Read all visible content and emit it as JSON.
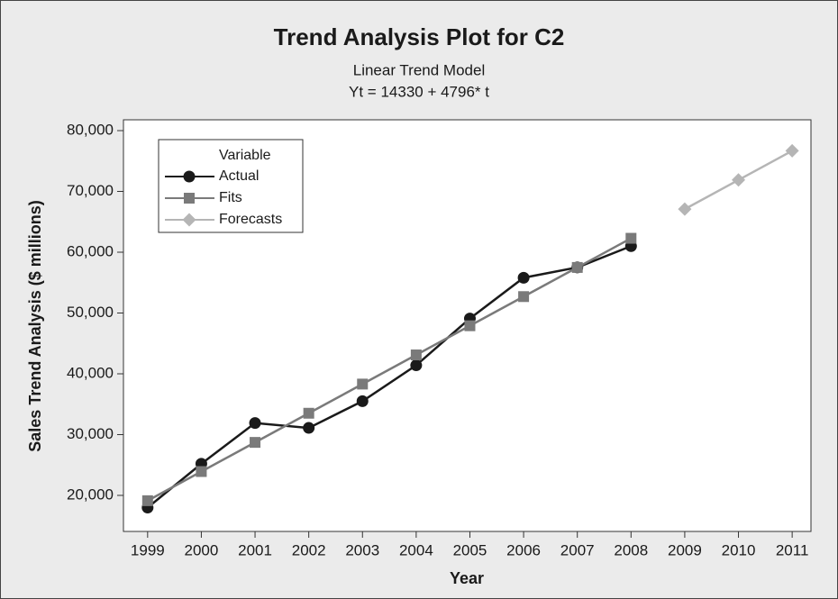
{
  "chart_data": {
    "type": "line",
    "title": "Trend Analysis Plot for C2",
    "subtitle": [
      "Linear Trend Model",
      "Yt = 14330 + 4796* t"
    ],
    "x_label": "Year",
    "y_label": "Sales Trend Analysis ($ millions)",
    "x": [
      1999,
      2000,
      2001,
      2002,
      2003,
      2004,
      2005,
      2006,
      2007,
      2008,
      2009,
      2010,
      2011
    ],
    "xlim": [
      1998.55,
      2011.35
    ],
    "xticks": [
      1999,
      2000,
      2001,
      2002,
      2003,
      2004,
      2005,
      2006,
      2007,
      2008,
      2009,
      2010,
      2011
    ],
    "ylim": [
      14070,
      81780
    ],
    "yticks": [
      {
        "value": 20000,
        "label": "20,000"
      },
      {
        "value": 30000,
        "label": "30,000"
      },
      {
        "value": 40000,
        "label": "40,000"
      },
      {
        "value": 50000,
        "label": "50,000"
      },
      {
        "value": 60000,
        "label": "60,000"
      },
      {
        "value": 70000,
        "label": "70,000"
      },
      {
        "value": 80000,
        "label": "80,000"
      }
    ],
    "legend_title": "Variable",
    "legend": "top-left",
    "series": [
      {
        "name": "Actual",
        "color": "#1a1a1a",
        "marker": "circle",
        "values": [
          18000,
          25200,
          31900,
          31100,
          35500,
          41400,
          49100,
          55800,
          57500,
          61000,
          null,
          null,
          null
        ]
      },
      {
        "name": "Fits",
        "color": "#7a7a7a",
        "marker": "square",
        "values": [
          19126,
          23922,
          28718,
          33514,
          38310,
          43106,
          47902,
          52698,
          57494,
          62290,
          null,
          null,
          null
        ]
      },
      {
        "name": "Forecasts",
        "color": "#b5b5b5",
        "marker": "diamond",
        "values": [
          null,
          null,
          null,
          null,
          null,
          null,
          null,
          null,
          null,
          null,
          67086,
          71882,
          76678
        ]
      }
    ]
  }
}
